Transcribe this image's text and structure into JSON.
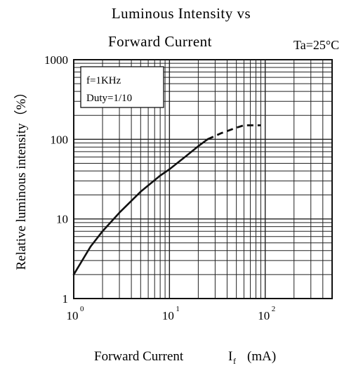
{
  "chart_data": {
    "type": "line",
    "title_line1": "Luminous Intensity vs",
    "title_line2": "Forward Current",
    "condition": "Ta=25°C",
    "xlabel": "Forward Current",
    "xlabel_symbol": "I",
    "xlabel_subscript": "f",
    "xlabel_unit": "(mA)",
    "ylabel": "Relative luminous intensity（%）",
    "x_scale": "log",
    "y_scale": "log",
    "xlim": [
      1,
      500
    ],
    "ylim": [
      1,
      1000
    ],
    "grid": true,
    "x_ticks": [
      {
        "value": 1,
        "base": "10",
        "exp": "0"
      },
      {
        "value": 10,
        "base": "10",
        "exp": "1"
      },
      {
        "value": 100,
        "base": "10",
        "exp": "2"
      }
    ],
    "y_ticks": [
      {
        "value": 1,
        "label": "1"
      },
      {
        "value": 10,
        "label": "10"
      },
      {
        "value": 100,
        "label": "100"
      },
      {
        "value": 1000,
        "label": "1000"
      }
    ],
    "legend": {
      "position": "top-left",
      "lines": [
        "f=1KHz",
        "Duty=1/10"
      ]
    },
    "series": [
      {
        "solid_points": [
          [
            1,
            2
          ],
          [
            1.5,
            4.5
          ],
          [
            2,
            7
          ],
          [
            3,
            12
          ],
          [
            5,
            22
          ],
          [
            8,
            35
          ],
          [
            10,
            42
          ],
          [
            15,
            62
          ],
          [
            20,
            82
          ],
          [
            25,
            100
          ]
        ],
        "dashed_points": [
          [
            25,
            100
          ],
          [
            35,
            120
          ],
          [
            50,
            140
          ],
          [
            60,
            150
          ],
          [
            70,
            150
          ],
          [
            90,
            150
          ]
        ]
      }
    ]
  }
}
